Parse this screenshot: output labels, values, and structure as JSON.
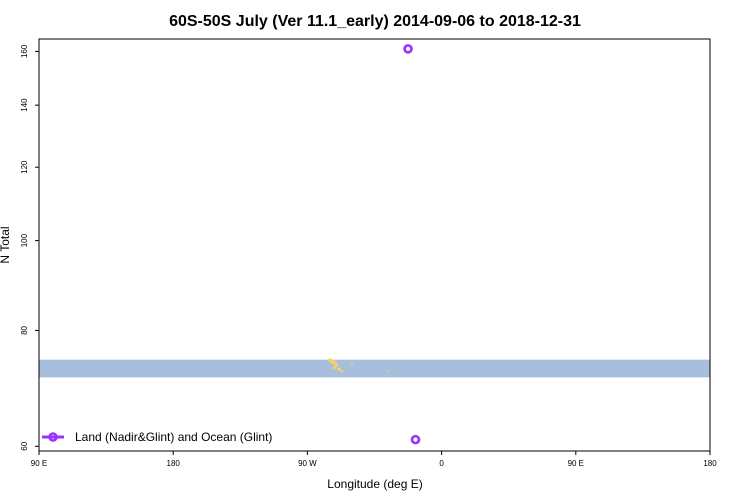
{
  "chart_data": {
    "type": "scatter",
    "title": "60S-50S July (Ver 11.1_early)   2014-09-06 to 2018-12-31",
    "xlabel": "Longitude (deg E)",
    "ylabel": "N Total",
    "x_scale": "longitude",
    "xlim": [
      90,
      450
    ],
    "y_scale": "log",
    "ylim": [
      59.3,
      165
    ],
    "x_ticks": [
      {
        "value": 90,
        "label": "90 E"
      },
      {
        "value": 180,
        "label": "180"
      },
      {
        "value": 270,
        "label": "90 W"
      },
      {
        "value": 360,
        "label": "0"
      },
      {
        "value": 450,
        "label": "90 E"
      },
      {
        "value": 540,
        "label": "180"
      }
    ],
    "y_ticks": [
      {
        "value": 60,
        "label": "60"
      },
      {
        "value": 80,
        "label": "80"
      },
      {
        "value": 100,
        "label": "100"
      },
      {
        "value": 120,
        "label": "120"
      },
      {
        "value": 140,
        "label": "140"
      },
      {
        "value": 160,
        "label": "160"
      }
    ],
    "series": [
      {
        "name": "Land (Nadir&Glint) and Ocean (Glint)",
        "color": "#9b30ff",
        "marker": "open-circle",
        "points": [
          {
            "lon": 288.0,
            "value": 161.0
          },
          {
            "lon": 292.0,
            "value": 61.0
          }
        ]
      }
    ],
    "latitude_band": {
      "color": "#a8bedd",
      "value_range": [
        71.2,
        74.4
      ]
    },
    "land_color": "#f5d36a",
    "legend_position": "bottom-left",
    "grid": false
  }
}
